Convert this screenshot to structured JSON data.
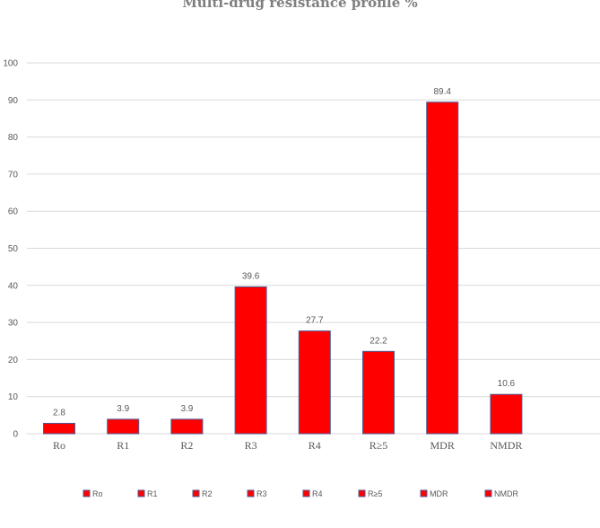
{
  "chart_data": {
    "type": "bar",
    "title": "Multi-drug resistance profile %",
    "xlabel": "",
    "ylabel": "",
    "categories": [
      "Ro",
      "R1",
      "R2",
      "R3",
      "R4",
      "R≥5",
      "MDR",
      "NMDR"
    ],
    "legend_labels": [
      "Ro",
      "R1",
      "R2",
      "R3",
      "R4",
      "R≥5",
      "MDR",
      "NMDR"
    ],
    "values": [
      2.8,
      3.9,
      3.9,
      39.6,
      27.7,
      22.2,
      89.4,
      10.6
    ],
    "data_labels": [
      "2.8",
      "3.9",
      "3.9",
      "39.6",
      "27.7",
      "22.2",
      "89.4",
      "10.6"
    ],
    "ylim": [
      0,
      100
    ],
    "yticks": [
      0,
      10,
      20,
      30,
      40,
      50,
      60,
      70,
      80,
      90,
      100
    ],
    "grid": true,
    "legend_position": "bottom",
    "colors": {
      "bar_fill": "#ff0000",
      "bar_stroke": "#4f5b93",
      "grid": "#d9d9d9",
      "text": "#595959"
    }
  }
}
